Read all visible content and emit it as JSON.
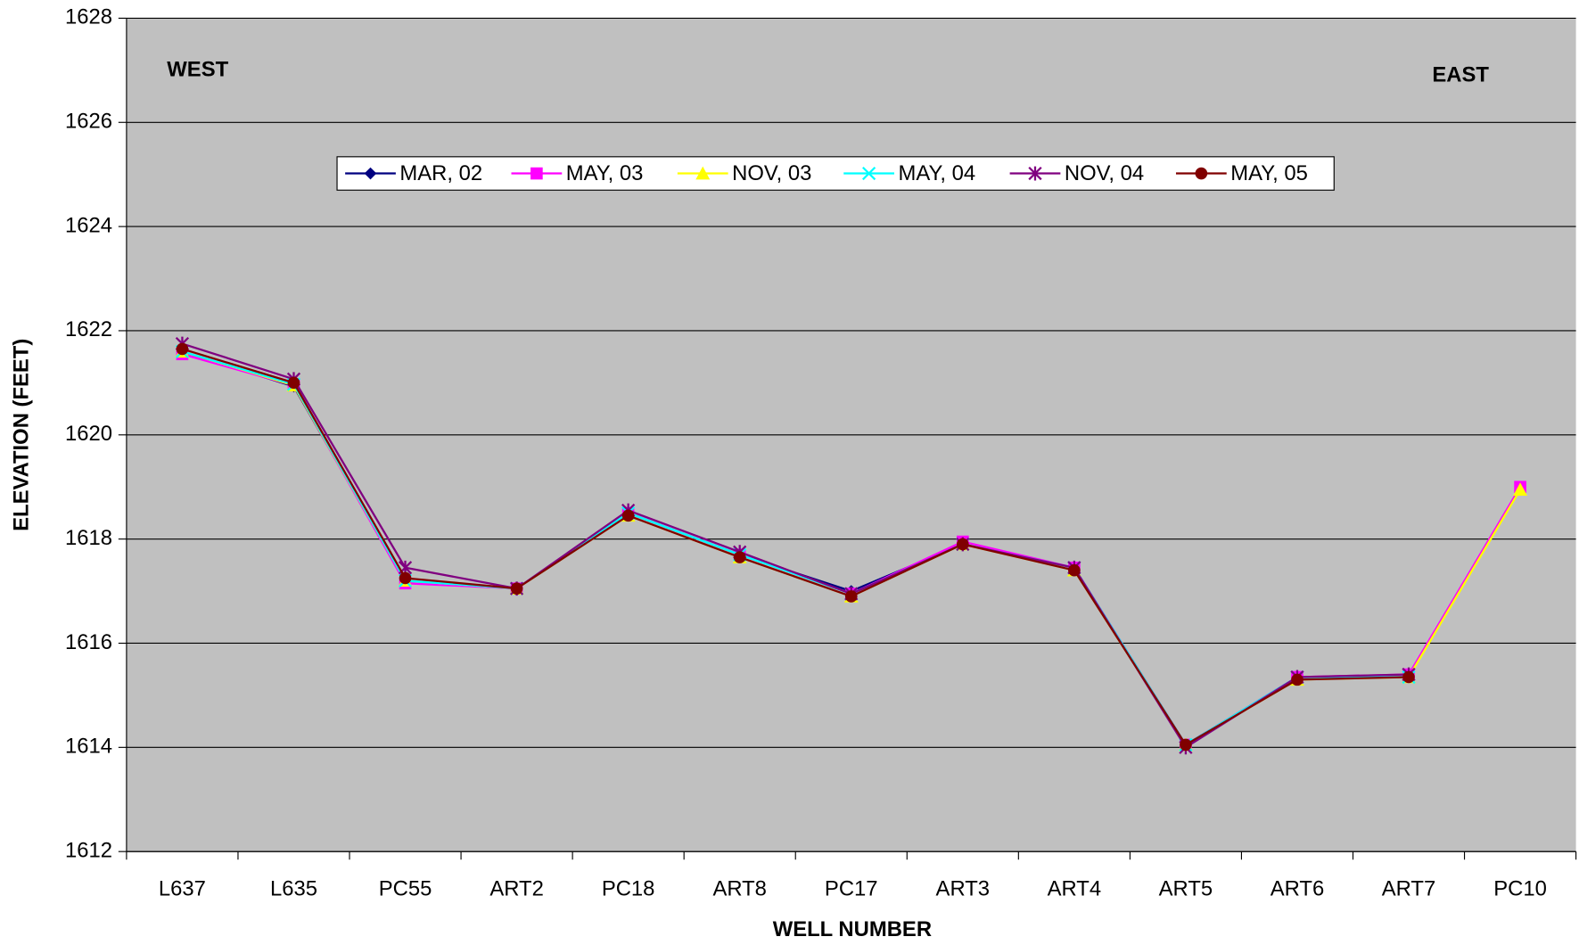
{
  "chart_data": {
    "type": "line",
    "xlabel": "WELL NUMBER",
    "ylabel": "ELEVATION (FEET)",
    "annotations": [
      "WEST",
      "EAST"
    ],
    "categories": [
      "L637",
      "L635",
      "PC55",
      "ART2",
      "PC18",
      "ART8",
      "PC17",
      "ART3",
      "ART4",
      "ART5",
      "ART6",
      "ART7",
      "PC10"
    ],
    "series": [
      {
        "name": "MAR, 02",
        "color": "#000080",
        "marker": "diamond",
        "values": [
          1621.6,
          1620.93,
          1617.2,
          1617.05,
          1618.5,
          1617.7,
          1617.0,
          1617.9,
          1617.45,
          1614.05,
          1615.35,
          1615.35,
          null
        ]
      },
      {
        "name": "MAY, 03",
        "color": "#ff00ff",
        "marker": "square",
        "values": [
          1621.55,
          1620.95,
          1617.15,
          1617.05,
          1618.5,
          1617.7,
          1616.95,
          1617.95,
          1617.45,
          1614.05,
          1615.35,
          1615.4,
          1619.0
        ]
      },
      {
        "name": "NOV, 03",
        "color": "#ffff00",
        "marker": "triangle",
        "values": [
          1621.6,
          1620.95,
          1617.2,
          1617.05,
          1618.45,
          1617.65,
          1616.9,
          1617.9,
          1617.4,
          1614.05,
          1615.3,
          1615.35,
          1618.95
        ]
      },
      {
        "name": "MAY, 04",
        "color": "#00ffff",
        "marker": "x",
        "values": [
          1621.6,
          1620.97,
          1617.2,
          1617.05,
          1618.5,
          1617.7,
          1616.95,
          1617.9,
          1617.45,
          1614.05,
          1615.35,
          1615.35,
          null
        ]
      },
      {
        "name": "NOV, 04",
        "color": "#800080",
        "marker": "star",
        "values": [
          1621.75,
          1621.07,
          1617.45,
          1617.05,
          1618.55,
          1617.75,
          1616.95,
          1617.9,
          1617.45,
          1614.0,
          1615.35,
          1615.4,
          null
        ]
      },
      {
        "name": "MAY, 05",
        "color": "#800000",
        "marker": "circle",
        "values": [
          1621.65,
          1621.0,
          1617.25,
          1617.05,
          1618.45,
          1617.65,
          1616.9,
          1617.9,
          1617.4,
          1614.05,
          1615.3,
          1615.35,
          null
        ]
      }
    ],
    "ylim": [
      1612,
      1628
    ],
    "yticks": [
      1612,
      1614,
      1616,
      1618,
      1620,
      1622,
      1624,
      1626,
      1628
    ],
    "grid": true,
    "plot_background": "#c0c0c0",
    "legend": "top"
  }
}
